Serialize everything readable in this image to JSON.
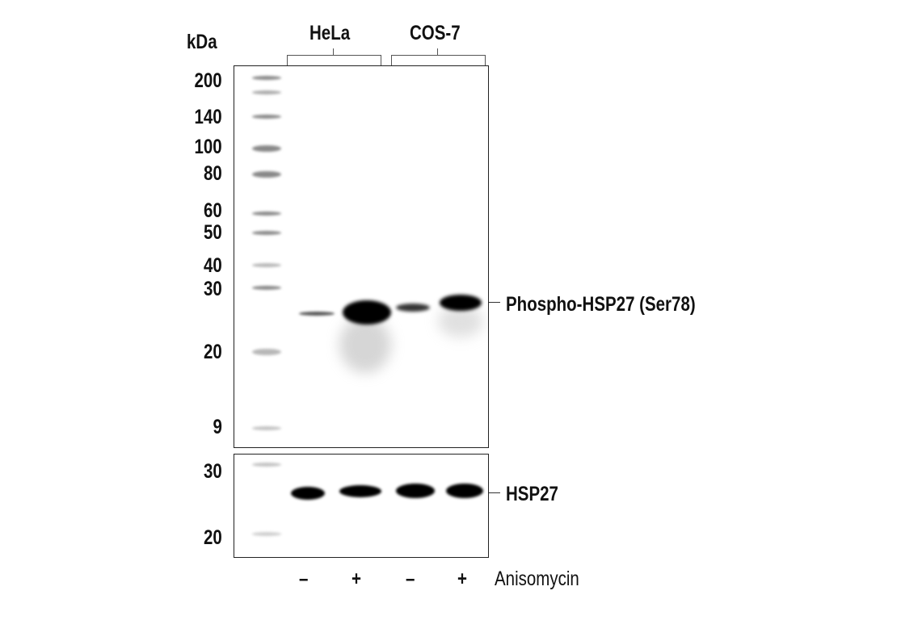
{
  "axis_unit": "kDa",
  "cell_lines": [
    "HeLa",
    "COS-7"
  ],
  "lanes": [
    {
      "cell_line": "HeLa",
      "treatment": "–"
    },
    {
      "cell_line": "HeLa",
      "treatment": "+"
    },
    {
      "cell_line": "COS-7",
      "treatment": "–"
    },
    {
      "cell_line": "COS-7",
      "treatment": "+"
    }
  ],
  "treatment_label": "Anisomycin",
  "top_panel": {
    "markers": [
      "200",
      "140",
      "100",
      "80",
      "60",
      "50",
      "40",
      "30",
      "20",
      "9"
    ],
    "band_label": "Phospho-HSP27 (Ser78)"
  },
  "bottom_panel": {
    "markers": [
      "30",
      "20"
    ],
    "band_label": "HSP27"
  }
}
